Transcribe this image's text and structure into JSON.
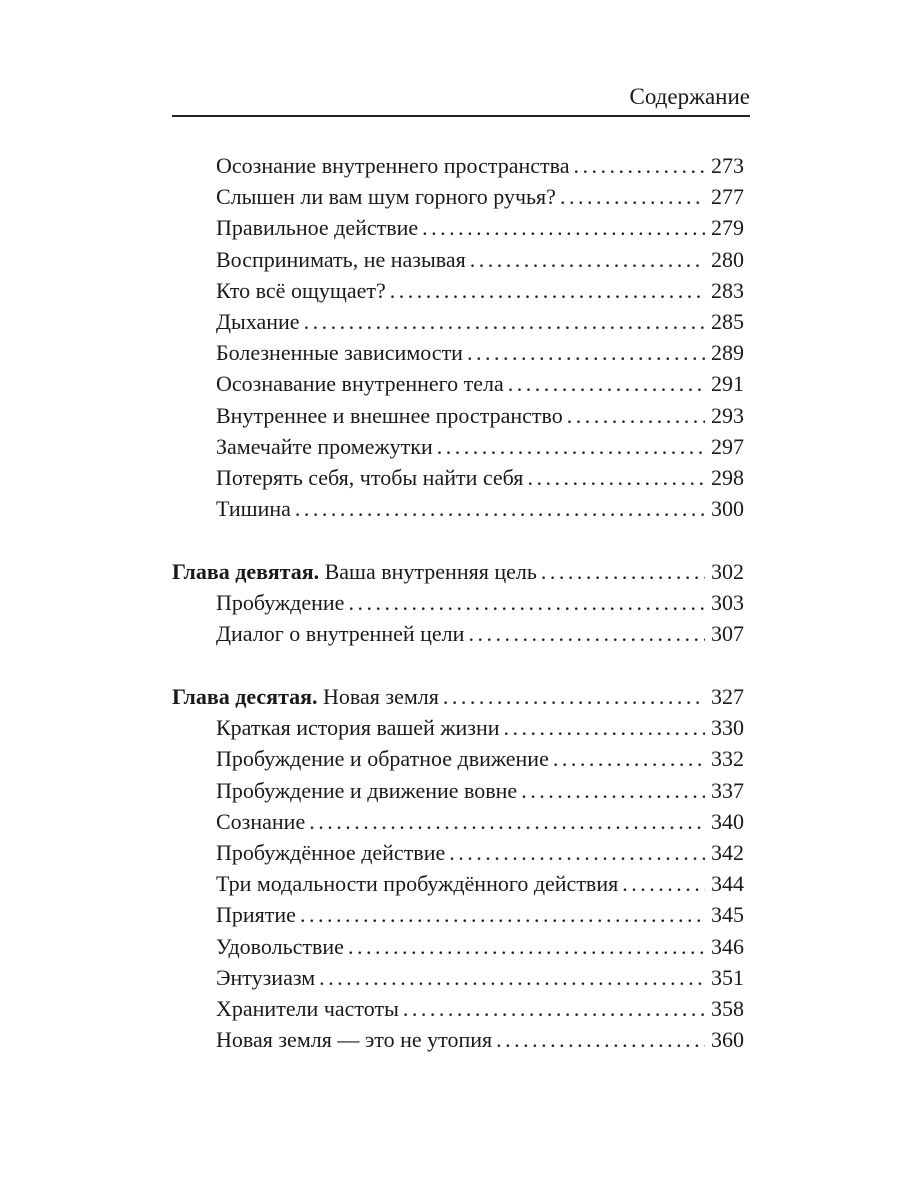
{
  "header": {
    "title": "Содержание"
  },
  "sections": [
    {
      "entries": [
        {
          "title": "Осознание внутреннего пространства",
          "page": "273"
        },
        {
          "title": "Слышен ли вам шум горного  ручья?",
          "page": "277"
        },
        {
          "title": "Правильное действие",
          "page": "279"
        },
        {
          "title": "Воспринимать, не называя",
          "page": "280"
        },
        {
          "title": "Кто всё ощущает?",
          "page": "283"
        },
        {
          "title": "Дыхание",
          "page": "285"
        },
        {
          "title": "Болезненные зависимости",
          "page": "289"
        },
        {
          "title": "Осознавание внутреннего тела",
          "page": "291"
        },
        {
          "title": "Внутреннее и внешнее пространство",
          "page": "293"
        },
        {
          "title": "Замечайте промежутки",
          "page": "297"
        },
        {
          "title": "Потерять себя, чтобы  найти  себя",
          "page": "298"
        },
        {
          "title": "Тишина",
          "page": "300"
        }
      ]
    },
    {
      "chapter": {
        "label": "Глава девятая.",
        "title": "Ваша внутренняя цель",
        "page": "302"
      },
      "entries": [
        {
          "title": "Пробуждение",
          "page": "303"
        },
        {
          "title": "Диалог о внутренней цели",
          "page": "307"
        }
      ]
    },
    {
      "chapter": {
        "label": "Глава десятая.",
        "title": "Новая земля",
        "page": "327"
      },
      "entries": [
        {
          "title": "Краткая история вашей жизни",
          "page": "330"
        },
        {
          "title": "Пробуждение и обратное движение",
          "page": "332"
        },
        {
          "title": "Пробуждение и движение вовне",
          "page": "337"
        },
        {
          "title": "Сознание",
          "page": "340"
        },
        {
          "title": "Пробуждённое действие",
          "page": "342"
        },
        {
          "title": "Три модальности пробуждённого действия",
          "page": "344"
        },
        {
          "title": "Приятие",
          "page": "345"
        },
        {
          "title": "Удовольствие",
          "page": "346"
        },
        {
          "title": "Энтузиазм",
          "page": "351"
        },
        {
          "title": "Хранители частоты",
          "page": "358"
        },
        {
          "title": "Новая земля — это не утопия",
          "page": "360"
        }
      ]
    }
  ]
}
